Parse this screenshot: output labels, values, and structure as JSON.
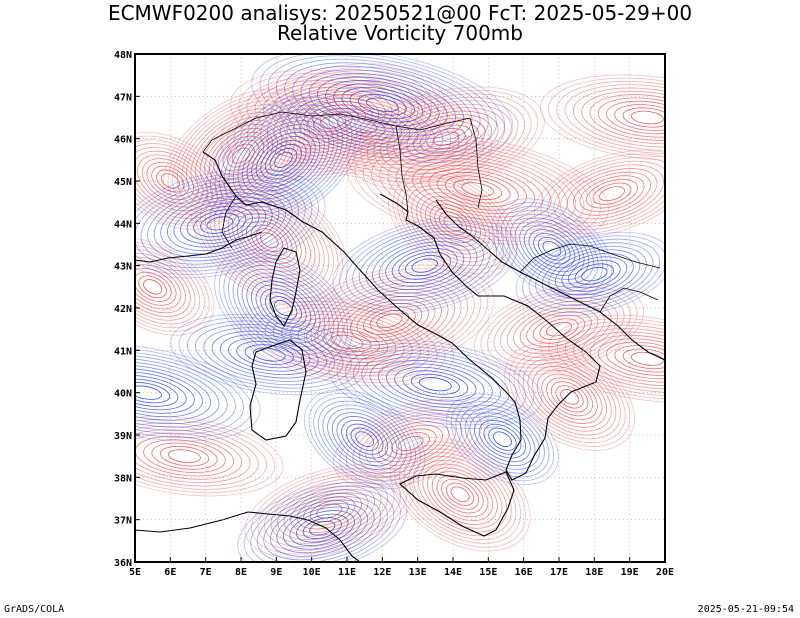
{
  "header": {
    "line1": "ECMWF0200 analisys: 20250521@00 FcT: 2025-05-29+00",
    "line2": "Relative Vorticity 700mb"
  },
  "footer": {
    "left": "GrADS/COLA",
    "right": "2025-05-21-09:54"
  },
  "map": {
    "lon_range": [
      5,
      20
    ],
    "lat_range": [
      36,
      48
    ],
    "lon_labels": [
      "5E",
      "6E",
      "7E",
      "8E",
      "9E",
      "10E",
      "11E",
      "12E",
      "13E",
      "14E",
      "15E",
      "16E",
      "17E",
      "18E",
      "19E",
      "20E"
    ],
    "lat_labels": [
      "36N",
      "37N",
      "38N",
      "39N",
      "40N",
      "41N",
      "42N",
      "43N",
      "44N",
      "45N",
      "46N",
      "47N",
      "48N"
    ],
    "colors": {
      "positive_contour": "#f04848",
      "negative_contour": "#2040f0",
      "coastline": "#000000",
      "frame": "#000000",
      "background": "#ffffff"
    },
    "positive_centers": [
      {
        "lon": 8.0,
        "lat": 45.6,
        "strength": 1.0
      },
      {
        "lon": 10.6,
        "lat": 46.4,
        "strength": 1.0
      },
      {
        "lon": 11.4,
        "lat": 46.3,
        "strength": 0.9
      },
      {
        "lon": 8.8,
        "lat": 43.6,
        "strength": 1.0
      },
      {
        "lon": 13.8,
        "lat": 46.0,
        "strength": 0.8
      },
      {
        "lon": 14.7,
        "lat": 44.8,
        "strength": 0.9
      },
      {
        "lon": 14.0,
        "lat": 44.0,
        "strength": 0.7
      },
      {
        "lon": 12.2,
        "lat": 41.7,
        "strength": 0.9
      },
      {
        "lon": 11.0,
        "lat": 41.2,
        "strength": 0.6
      },
      {
        "lon": 17.3,
        "lat": 39.9,
        "strength": 0.7
      },
      {
        "lon": 17.0,
        "lat": 41.5,
        "strength": 0.6
      },
      {
        "lon": 19.5,
        "lat": 40.8,
        "strength": 0.6
      },
      {
        "lon": 14.2,
        "lat": 37.6,
        "strength": 0.8
      },
      {
        "lon": 10.5,
        "lat": 37.2,
        "strength": 0.6
      },
      {
        "lon": 6.4,
        "lat": 38.5,
        "strength": 0.5
      },
      {
        "lon": 6.0,
        "lat": 45.0,
        "strength": 0.6
      },
      {
        "lon": 18.5,
        "lat": 44.7,
        "strength": 0.5
      },
      {
        "lon": 19.5,
        "lat": 46.5,
        "strength": 0.6
      },
      {
        "lon": 5.5,
        "lat": 42.5,
        "strength": 0.6
      },
      {
        "lon": 12.8,
        "lat": 38.8,
        "strength": 0.5
      }
    ],
    "negative_centers": [
      {
        "lon": 9.2,
        "lat": 45.5,
        "strength": 1.0
      },
      {
        "lon": 7.4,
        "lat": 44.0,
        "strength": 0.9
      },
      {
        "lon": 12.0,
        "lat": 46.8,
        "strength": 0.9
      },
      {
        "lon": 9.2,
        "lat": 42.0,
        "strength": 0.8
      },
      {
        "lon": 13.2,
        "lat": 43.0,
        "strength": 0.7
      },
      {
        "lon": 5.3,
        "lat": 40.0,
        "strength": 0.7
      },
      {
        "lon": 16.8,
        "lat": 43.4,
        "strength": 0.6
      },
      {
        "lon": 18.0,
        "lat": 42.8,
        "strength": 0.5
      },
      {
        "lon": 13.5,
        "lat": 40.2,
        "strength": 0.6
      },
      {
        "lon": 11.5,
        "lat": 38.9,
        "strength": 0.6
      },
      {
        "lon": 10.3,
        "lat": 36.8,
        "strength": 0.6
      },
      {
        "lon": 8.8,
        "lat": 40.9,
        "strength": 0.5
      },
      {
        "lon": 15.4,
        "lat": 38.9,
        "strength": 0.5
      }
    ]
  }
}
